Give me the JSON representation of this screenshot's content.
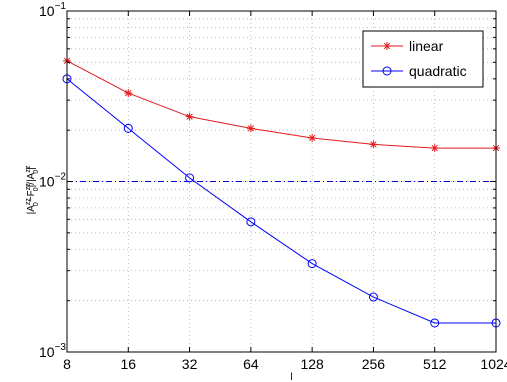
{
  "chart_data": {
    "type": "line",
    "title": "",
    "xlabel": "l",
    "ylabel": "|A0zz−F0zz|/|A0zz|",
    "ylabel_parts": {
      "pre": "|A",
      "sub1": "0",
      "sup1": "zz",
      "mid": "−F",
      "sub2": "0",
      "sup2": "zz",
      "mid2": "|/|A",
      "sub3": "0",
      "sup3": "zz",
      "post": "|"
    },
    "x_scale": "log2",
    "y_scale": "log10",
    "x": [
      8,
      16,
      32,
      64,
      128,
      256,
      512,
      1024
    ],
    "xlim": [
      8,
      1024
    ],
    "ylim": [
      0.001,
      0.1
    ],
    "x_ticks": [
      "8",
      "16",
      "32",
      "64",
      "128",
      "256",
      "512",
      "1024"
    ],
    "y_ticks": [
      {
        "base": "10",
        "exp": "−1",
        "value": 0.1
      },
      {
        "base": "10",
        "exp": "−2",
        "value": 0.01
      },
      {
        "base": "10",
        "exp": "−3",
        "value": 0.001
      }
    ],
    "grid": true,
    "legend_position": "top-right",
    "series": [
      {
        "name": "linear",
        "color": "#e41a1c",
        "marker": "star",
        "values": [
          0.051,
          0.033,
          0.024,
          0.0205,
          0.018,
          0.0165,
          0.0157,
          0.0157
        ]
      },
      {
        "name": "quadratic",
        "color": "#0000ff",
        "marker": "circle",
        "values": [
          0.04,
          0.0205,
          0.0105,
          0.0058,
          0.0033,
          0.0021,
          0.00148,
          0.00148
        ]
      }
    ],
    "reference_line": {
      "value": 0.01,
      "color": "#0000cc",
      "style": "dash-dot"
    }
  }
}
